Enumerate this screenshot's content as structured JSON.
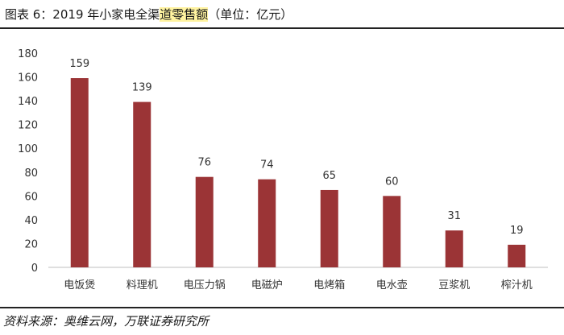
{
  "header": {
    "title_prefix": "图表 6：2019 年小家电全渠",
    "title_highlight": "道零售额",
    "title_suffix": "（单位：亿元）"
  },
  "footer": {
    "source": "资料来源：奥维云网，万联证券研究所"
  },
  "colors": {
    "bar": "#9b3436",
    "axis": "#bfbfbf"
  },
  "chart_data": {
    "type": "bar",
    "categories": [
      "电饭煲",
      "料理机",
      "电压力锅",
      "电磁炉",
      "电烤箱",
      "电水壶",
      "豆浆机",
      "榨汁机"
    ],
    "values": [
      159,
      139,
      76,
      74,
      65,
      60,
      31,
      19
    ],
    "ylim": [
      0,
      180
    ],
    "yticks": [
      0,
      20,
      40,
      60,
      80,
      100,
      120,
      140,
      160,
      180
    ],
    "grid": false,
    "legend": "none"
  }
}
